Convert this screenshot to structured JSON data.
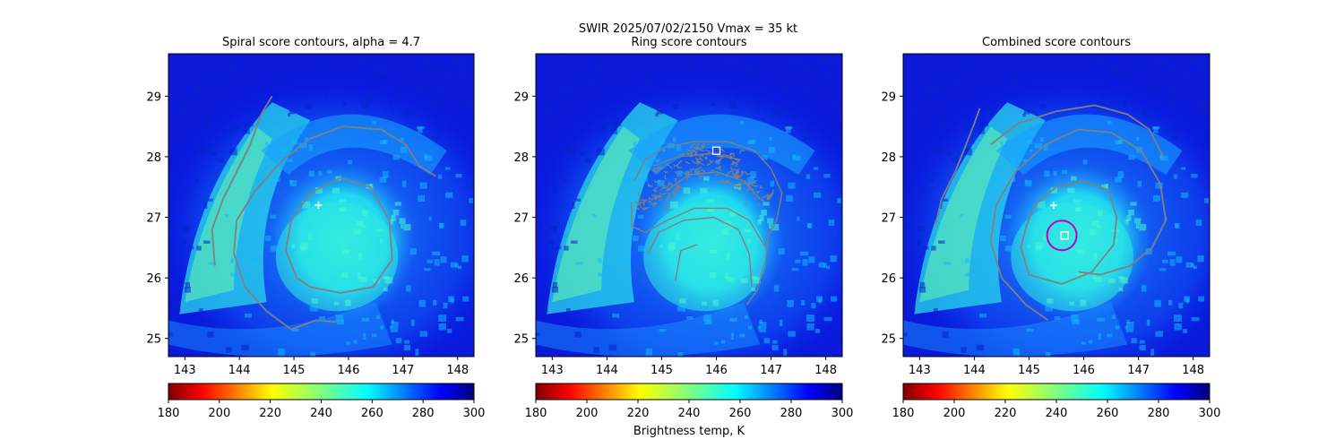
{
  "figure": {
    "suptitle_line1": "SWIR  2025/07/02/2150    Vmax = 35 kt"
  },
  "colorbar": {
    "label": "Brightness temp, K",
    "min": 180,
    "max": 300,
    "ticks": [
      "180",
      "200",
      "220",
      "240",
      "260",
      "280",
      "300"
    ],
    "colormap": "jet_r"
  },
  "chart_data": [
    {
      "type": "heatmap",
      "title": "Spiral score contours, alpha =  4.7",
      "xlim": [
        142.7,
        148.3
      ],
      "ylim": [
        24.7,
        29.7
      ],
      "xticks": [
        "143",
        "144",
        "145",
        "146",
        "147",
        "148"
      ],
      "yticks": [
        "25",
        "26",
        "27",
        "28",
        "29"
      ],
      "colors": {
        "contour": "#808080",
        "marker": "#ffffff"
      },
      "markers": [
        {
          "kind": "plus",
          "lon": 145.45,
          "lat": 27.2
        }
      ],
      "contours": [
        {
          "points": [
            [
              143.55,
              26.2
            ],
            [
              143.5,
              26.8
            ],
            [
              143.7,
              27.3
            ],
            [
              143.95,
              27.75
            ],
            [
              144.2,
              28.2
            ],
            [
              144.4,
              28.7
            ],
            [
              144.6,
              29.0
            ]
          ]
        },
        {
          "points": [
            [
              144.95,
              25.15
            ],
            [
              144.5,
              25.45
            ],
            [
              144.1,
              25.85
            ],
            [
              143.9,
              26.4
            ],
            [
              143.95,
              26.95
            ],
            [
              144.3,
              27.45
            ],
            [
              144.8,
              27.95
            ],
            [
              145.3,
              28.3
            ],
            [
              145.9,
              28.5
            ],
            [
              146.6,
              28.45
            ],
            [
              147.05,
              28.2
            ],
            [
              147.3,
              27.85
            ],
            [
              147.6,
              27.68
            ]
          ]
        },
        {
          "points": [
            [
              145.05,
              26.0
            ],
            [
              144.85,
              26.45
            ],
            [
              144.95,
              26.95
            ],
            [
              145.3,
              27.4
            ],
            [
              145.85,
              27.65
            ],
            [
              146.4,
              27.5
            ],
            [
              146.75,
              26.95
            ],
            [
              146.8,
              26.3
            ],
            [
              146.45,
              25.85
            ],
            [
              145.85,
              25.75
            ],
            [
              145.3,
              25.85
            ],
            [
              145.05,
              26.0
            ]
          ]
        },
        {
          "points": [
            [
              144.95,
              25.15
            ],
            [
              145.4,
              25.3
            ],
            [
              145.8,
              25.27
            ]
          ]
        }
      ]
    },
    {
      "type": "heatmap",
      "title": "Ring score contours",
      "xlim": [
        142.7,
        148.3
      ],
      "ylim": [
        24.7,
        29.7
      ],
      "xticks": [
        "143",
        "144",
        "145",
        "146",
        "147",
        "148"
      ],
      "yticks": [
        "25",
        "26",
        "27",
        "28",
        "29"
      ],
      "colors": {
        "contour": "#808080",
        "marker": "#ffffff"
      },
      "markers": [
        {
          "kind": "square",
          "lon": 146.0,
          "lat": 28.1
        }
      ],
      "contours": [
        {
          "points": [
            [
              144.5,
              27.6
            ],
            [
              144.7,
              27.95
            ],
            [
              145.05,
              28.15
            ],
            [
              145.6,
              28.25
            ],
            [
              146.2,
              28.25
            ],
            [
              146.7,
              28.1
            ],
            [
              147.0,
              27.8
            ],
            [
              147.2,
              27.4
            ],
            [
              147.1,
              26.95
            ],
            [
              146.95,
              26.7
            ],
            [
              146.9,
              26.3
            ],
            [
              146.75,
              25.8
            ],
            [
              146.55,
              25.55
            ]
          ]
        },
        {
          "points": [
            [
              144.45,
              27.25
            ],
            [
              144.45,
              26.85
            ],
            [
              144.7,
              26.75
            ],
            [
              145.1,
              26.95
            ],
            [
              145.6,
              27.15
            ],
            [
              146.2,
              27.15
            ],
            [
              146.6,
              26.95
            ],
            [
              146.9,
              26.5
            ]
          ]
        },
        {
          "points": [
            [
              144.75,
              26.4
            ],
            [
              144.95,
              26.75
            ],
            [
              145.4,
              26.95
            ],
            [
              145.95,
              27.0
            ],
            [
              146.4,
              26.8
            ],
            [
              146.6,
              26.4
            ],
            [
              146.65,
              25.85
            ]
          ]
        },
        {
          "points": [
            [
              145.1,
              27.45
            ],
            [
              145.5,
              27.7
            ],
            [
              146.0,
              27.75
            ],
            [
              146.5,
              27.6
            ],
            [
              146.8,
              27.3
            ]
          ]
        },
        {
          "points": [
            [
              144.85,
              27.85
            ],
            [
              145.3,
              28.0
            ],
            [
              145.9,
              28.05
            ],
            [
              146.45,
              27.95
            ]
          ]
        },
        {
          "points": [
            [
              145.25,
              25.95
            ],
            [
              145.3,
              26.2
            ],
            [
              145.35,
              26.45
            ],
            [
              145.65,
              26.55
            ]
          ]
        }
      ]
    },
    {
      "type": "heatmap",
      "title": "Combined score contours",
      "xlim": [
        142.7,
        148.3
      ],
      "ylim": [
        24.7,
        29.7
      ],
      "xticks": [
        "143",
        "144",
        "145",
        "146",
        "147",
        "148"
      ],
      "yticks": [
        "25",
        "26",
        "27",
        "28",
        "29"
      ],
      "colors": {
        "contour": "#808080",
        "marker": "#ffffff",
        "circle": "#c000c0"
      },
      "markers": [
        {
          "kind": "plus",
          "lon": 145.45,
          "lat": 27.2
        },
        {
          "kind": "square",
          "lon": 145.65,
          "lat": 26.7
        }
      ],
      "circle": {
        "lon": 145.6,
        "lat": 26.7,
        "r_deg": 0.27
      },
      "contours": [
        {
          "points": [
            [
              143.3,
              26.9
            ],
            [
              143.4,
              27.3
            ],
            [
              143.65,
              27.75
            ],
            [
              143.85,
              28.2
            ],
            [
              144.0,
              28.55
            ],
            [
              144.1,
              28.8
            ]
          ]
        },
        {
          "points": [
            [
              145.35,
              25.3
            ],
            [
              144.95,
              25.55
            ],
            [
              144.5,
              26.0
            ],
            [
              144.3,
              26.6
            ],
            [
              144.4,
              27.2
            ],
            [
              144.75,
              27.75
            ],
            [
              145.3,
              28.2
            ],
            [
              145.9,
              28.45
            ],
            [
              146.5,
              28.4
            ],
            [
              147.05,
              28.1
            ],
            [
              147.4,
              27.55
            ],
            [
              147.5,
              26.95
            ],
            [
              147.25,
              26.5
            ],
            [
              146.85,
              26.2
            ],
            [
              146.3,
              26.05
            ],
            [
              145.9,
              26.1
            ]
          ]
        },
        {
          "points": [
            [
              144.3,
              28.2
            ],
            [
              144.8,
              28.55
            ],
            [
              145.5,
              28.75
            ],
            [
              146.2,
              28.85
            ],
            [
              146.8,
              28.7
            ],
            [
              147.2,
              28.45
            ],
            [
              147.45,
              28.0
            ]
          ]
        },
        {
          "points": [
            [
              144.95,
              26.85
            ],
            [
              145.1,
              27.2
            ],
            [
              145.5,
              27.5
            ],
            [
              146.0,
              27.6
            ],
            [
              146.45,
              27.45
            ],
            [
              146.6,
              27.0
            ],
            [
              146.55,
              26.55
            ],
            [
              146.15,
              26.1
            ],
            [
              145.6,
              25.9
            ],
            [
              145.0,
              26.05
            ],
            [
              144.85,
              26.5
            ],
            [
              144.95,
              26.85
            ]
          ]
        }
      ]
    }
  ]
}
